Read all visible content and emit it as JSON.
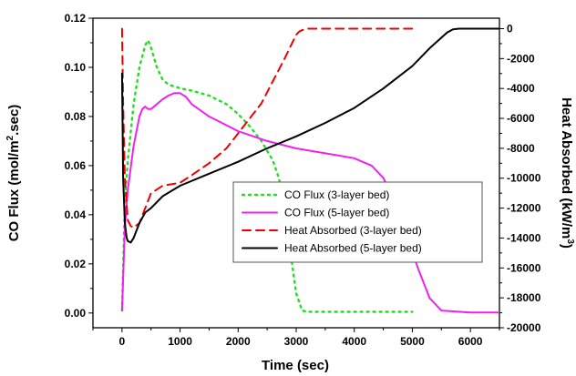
{
  "chart_data": {
    "type": "line",
    "xlabel": "Time (sec)",
    "ylabel_left": "CO Flux (mol/m",
    "ylabel_left_sup": "2",
    "ylabel_left_tail": ".sec)",
    "ylabel_right": "Heat Absorbed (kW/m",
    "ylabel_right_sup": "3",
    "ylabel_right_tail": ")",
    "xlim": [
      -500,
      6500
    ],
    "ylim_left": [
      -0.006,
      0.12
    ],
    "ylim_right": [
      -20000,
      700
    ],
    "x_ticks": [
      "0",
      "1000",
      "2000",
      "3000",
      "4000",
      "5000",
      "6000"
    ],
    "x_tick_values": [
      0,
      1000,
      2000,
      3000,
      4000,
      5000,
      6000
    ],
    "y_left_ticks": [
      "0.00",
      "0.02",
      "0.04",
      "0.06",
      "0.08",
      "0.10",
      "0.12"
    ],
    "y_left_tick_values": [
      0,
      0.02,
      0.04,
      0.06,
      0.08,
      0.1,
      0.12
    ],
    "y_right_ticks": [
      "0",
      "-2000",
      "-4000",
      "-6000",
      "-8000",
      "-10000",
      "-12000",
      "-14000",
      "-16000",
      "-18000",
      "-20000"
    ],
    "y_right_tick_values": [
      0,
      -2000,
      -4000,
      -6000,
      -8000,
      -10000,
      -12000,
      -14000,
      -16000,
      -18000,
      -20000
    ],
    "legend_position": "center-right",
    "series": [
      {
        "name": "CO Flux (3-layer bed)",
        "axis": "left",
        "color": "#22dd22",
        "style": "dotted",
        "x": [
          0,
          50,
          100,
          200,
          300,
          400,
          450,
          500,
          600,
          700,
          800,
          1000,
          1200,
          1500,
          1800,
          2000,
          2200,
          2400,
          2600,
          2700,
          2800,
          2900,
          3000,
          3100,
          3200,
          4000,
          5000
        ],
        "y": [
          0.001,
          0.045,
          0.062,
          0.085,
          0.1,
          0.109,
          0.111,
          0.108,
          0.1,
          0.095,
          0.093,
          0.0915,
          0.0905,
          0.0885,
          0.085,
          0.081,
          0.076,
          0.07,
          0.062,
          0.055,
          0.043,
          0.025,
          0.008,
          0.001,
          0.0005,
          0.0005,
          0.0005
        ]
      },
      {
        "name": "CO Flux (5-layer bed)",
        "axis": "left",
        "color": "#ee22ee",
        "style": "solid",
        "x": [
          0,
          50,
          100,
          200,
          300,
          350,
          400,
          450,
          500,
          600,
          700,
          800,
          900,
          1000,
          1100,
          1200,
          1500,
          2000,
          2500,
          3000,
          3500,
          4000,
          4300,
          4500,
          4700,
          4900,
          5100,
          5300,
          5500,
          6000,
          6500
        ],
        "y": [
          0.001,
          0.035,
          0.05,
          0.068,
          0.08,
          0.083,
          0.084,
          0.083,
          0.083,
          0.085,
          0.087,
          0.0885,
          0.0895,
          0.0895,
          0.088,
          0.085,
          0.08,
          0.074,
          0.07,
          0.067,
          0.065,
          0.063,
          0.06,
          0.055,
          0.045,
          0.032,
          0.018,
          0.006,
          0.001,
          0.0002,
          0.0002
        ]
      },
      {
        "name": "Heat Absorbed (3-layer bed)",
        "axis": "right",
        "color": "#ee0000",
        "style": "dashed",
        "x": [
          0,
          20,
          50,
          100,
          150,
          200,
          300,
          400,
          500,
          700,
          1000,
          1200,
          1500,
          1800,
          2000,
          2200,
          2400,
          2600,
          2800,
          2900,
          3000,
          3050,
          3100,
          3200,
          3500,
          4000,
          5000
        ],
        "y": [
          0,
          -5000,
          -10000,
          -12800,
          -13200,
          -13300,
          -13000,
          -12000,
          -11000,
          -10500,
          -10300,
          -9800,
          -9000,
          -8000,
          -7000,
          -6000,
          -5000,
          -3500,
          -2000,
          -1200,
          -400,
          -200,
          -100,
          0,
          0,
          0,
          0
        ]
      },
      {
        "name": "Heat Absorbed (5-layer bed)",
        "axis": "right",
        "color": "#000000",
        "style": "solid",
        "x": [
          0,
          20,
          50,
          80,
          100,
          150,
          200,
          300,
          400,
          500,
          700,
          1000,
          1500,
          2000,
          2500,
          3000,
          3500,
          4000,
          4500,
          5000,
          5300,
          5500,
          5600,
          5700,
          5800,
          6000,
          6500
        ],
        "y": [
          -3000,
          -10000,
          -13000,
          -14000,
          -14200,
          -14300,
          -14000,
          -13000,
          -12300,
          -12000,
          -11200,
          -10500,
          -9700,
          -8900,
          -8000,
          -7200,
          -6300,
          -5300,
          -4000,
          -2500,
          -1300,
          -600,
          -250,
          -50,
          0,
          0,
          0
        ]
      }
    ]
  }
}
